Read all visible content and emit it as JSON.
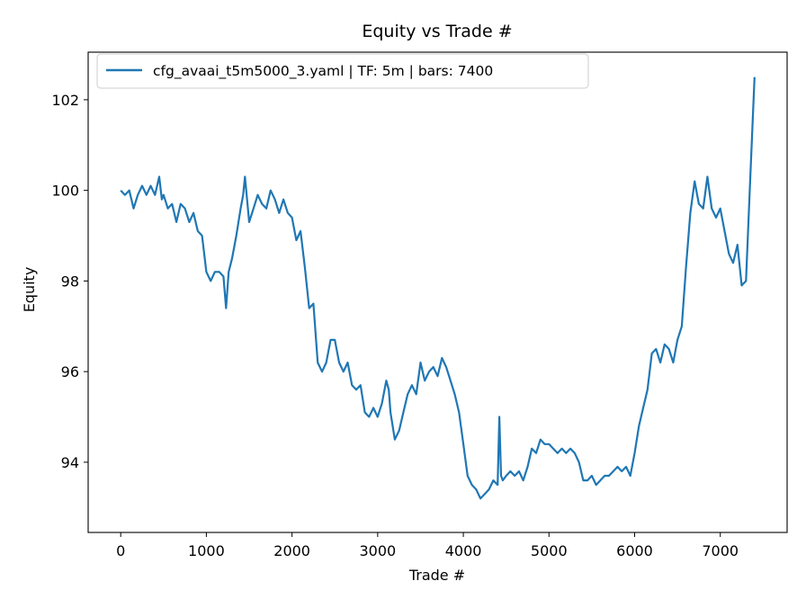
{
  "chart_data": {
    "type": "line",
    "title": "Equity vs Trade #",
    "xlabel": "Trade #",
    "ylabel": "Equity",
    "xlim": [
      -380,
      7780
    ],
    "ylim": [
      92.45,
      103.05
    ],
    "xticks": [
      0,
      1000,
      2000,
      3000,
      4000,
      5000,
      6000,
      7000
    ],
    "yticks": [
      94,
      96,
      98,
      100,
      102
    ],
    "grid": false,
    "legend_position": "top-left",
    "series": [
      {
        "name": "cfg_avaai_t5m5000_3.yaml | TF: 5m | bars: 7400",
        "color": "#1f77b4",
        "x": [
          0,
          50,
          100,
          150,
          200,
          250,
          300,
          350,
          400,
          450,
          480,
          500,
          550,
          600,
          650,
          700,
          750,
          800,
          850,
          900,
          950,
          1000,
          1050,
          1100,
          1150,
          1200,
          1230,
          1260,
          1300,
          1350,
          1400,
          1430,
          1450,
          1500,
          1550,
          1600,
          1650,
          1700,
          1750,
          1800,
          1850,
          1900,
          1950,
          2000,
          2050,
          2100,
          2150,
          2200,
          2250,
          2300,
          2350,
          2400,
          2450,
          2500,
          2550,
          2600,
          2650,
          2700,
          2750,
          2800,
          2850,
          2900,
          2950,
          3000,
          3050,
          3100,
          3130,
          3150,
          3200,
          3250,
          3300,
          3350,
          3400,
          3450,
          3500,
          3550,
          3600,
          3650,
          3700,
          3750,
          3800,
          3850,
          3900,
          3950,
          4000,
          4050,
          4100,
          4150,
          4200,
          4250,
          4300,
          4350,
          4400,
          4420,
          4440,
          4460,
          4500,
          4550,
          4600,
          4650,
          4700,
          4750,
          4800,
          4850,
          4900,
          4950,
          5000,
          5050,
          5100,
          5150,
          5200,
          5250,
          5300,
          5350,
          5400,
          5450,
          5500,
          5550,
          5600,
          5650,
          5700,
          5750,
          5800,
          5850,
          5900,
          5950,
          6000,
          6050,
          6100,
          6150,
          6200,
          6250,
          6300,
          6350,
          6400,
          6450,
          6500,
          6550,
          6600,
          6650,
          6700,
          6750,
          6800,
          6850,
          6900,
          6950,
          7000,
          7050,
          7100,
          7150,
          7200,
          7250,
          7300,
          7350,
          7400
        ],
        "y": [
          100.0,
          99.9,
          100.0,
          99.6,
          99.9,
          100.1,
          99.9,
          100.1,
          99.9,
          100.3,
          99.8,
          99.9,
          99.6,
          99.7,
          99.3,
          99.7,
          99.6,
          99.3,
          99.5,
          99.1,
          99.0,
          98.2,
          98.0,
          98.2,
          98.2,
          98.1,
          97.4,
          98.2,
          98.5,
          99.0,
          99.6,
          99.9,
          100.3,
          99.3,
          99.6,
          99.9,
          99.7,
          99.6,
          100.0,
          99.8,
          99.5,
          99.8,
          99.5,
          99.4,
          98.9,
          99.1,
          98.3,
          97.4,
          97.5,
          96.2,
          96.0,
          96.2,
          96.7,
          96.7,
          96.2,
          96.0,
          96.2,
          95.7,
          95.6,
          95.7,
          95.1,
          95.0,
          95.2,
          95.0,
          95.3,
          95.8,
          95.6,
          95.1,
          94.5,
          94.7,
          95.1,
          95.5,
          95.7,
          95.5,
          96.2,
          95.8,
          96.0,
          96.1,
          95.9,
          96.3,
          96.1,
          95.8,
          95.5,
          95.1,
          94.4,
          93.7,
          93.5,
          93.4,
          93.2,
          93.3,
          93.4,
          93.6,
          93.5,
          95.0,
          93.7,
          93.6,
          93.7,
          93.8,
          93.7,
          93.8,
          93.6,
          93.9,
          94.3,
          94.2,
          94.5,
          94.4,
          94.4,
          94.3,
          94.2,
          94.3,
          94.2,
          94.3,
          94.2,
          94.0,
          93.6,
          93.6,
          93.7,
          93.5,
          93.6,
          93.7,
          93.7,
          93.8,
          93.9,
          93.8,
          93.9,
          93.7,
          94.2,
          94.8,
          95.2,
          95.6,
          96.4,
          96.5,
          96.2,
          96.6,
          96.5,
          96.2,
          96.7,
          97.0,
          98.3,
          99.5,
          100.2,
          99.7,
          99.6,
          100.3,
          99.6,
          99.4,
          99.6,
          99.1,
          98.6,
          98.4,
          98.8,
          97.9,
          98.0,
          100.3,
          102.5
        ]
      }
    ]
  }
}
